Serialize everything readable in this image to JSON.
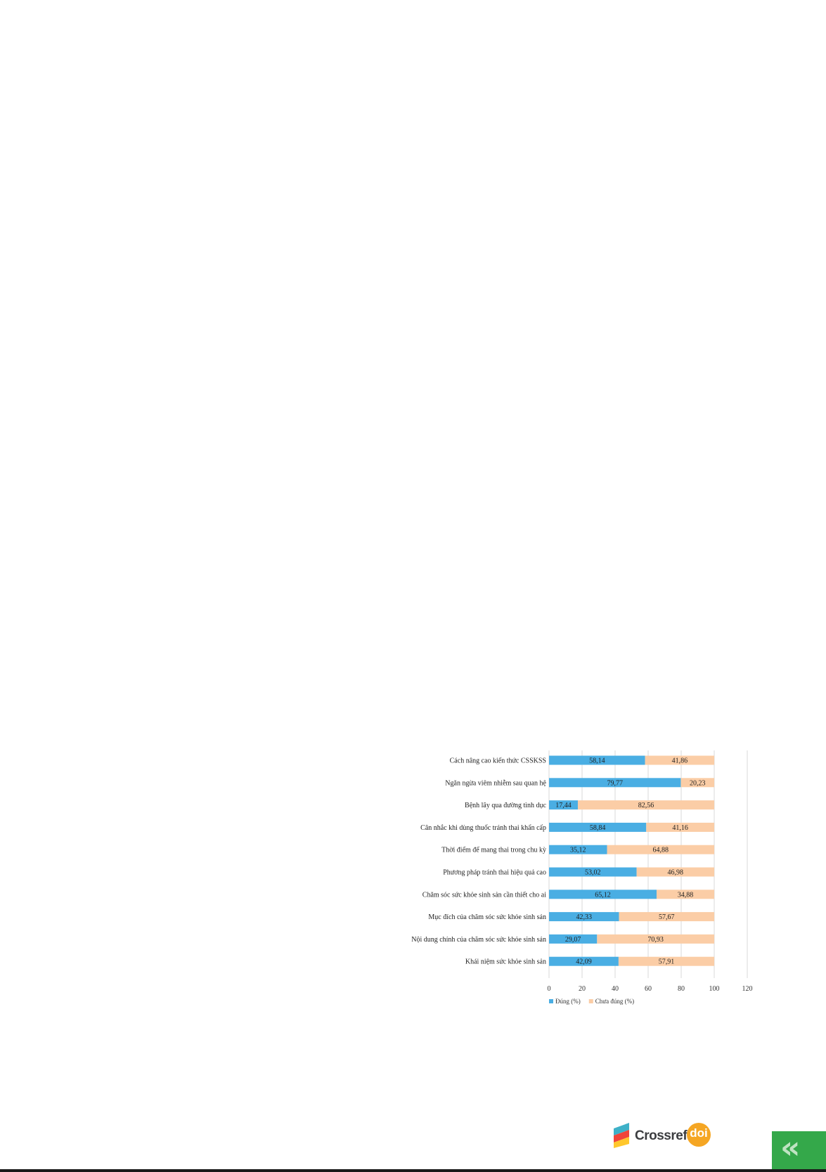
{
  "chart_data": {
    "type": "bar",
    "stacked": true,
    "orientation": "horizontal",
    "categories": [
      "Cách nâng cao kiến thức CSSKSS",
      "Ngăn ngừa viêm nhiễm sau quan hệ",
      "Bệnh lây qua đường tình dục",
      "Cân nhắc khi dùng thuốc tránh thai khẩn cấp",
      "Thời điểm để mang thai trong chu kỳ",
      "Phương pháp tránh thai hiệu quả cao",
      "Chăm sóc sức khỏe sinh sản cần thiết cho ai",
      "Mục đích của chăm sóc sức khỏe sinh sản",
      "Nội dung chính của chăm sóc sức khỏe sinh sản",
      "Khái niệm sức khỏe sinh sản"
    ],
    "series": [
      {
        "name": "Đúng (%)",
        "color": "#4aaee3",
        "values": [
          58.14,
          79.77,
          17.44,
          58.84,
          35.12,
          53.02,
          65.12,
          42.33,
          29.07,
          42.09
        ],
        "labels": [
          "58,14",
          "79,77",
          "17,44",
          "58,84",
          "35,12",
          "53,02",
          "65,12",
          "42,33",
          "29,07",
          "42,09"
        ]
      },
      {
        "name": "Chưa đúng (%)",
        "color": "#fbcda6",
        "values": [
          41.86,
          20.23,
          82.56,
          41.16,
          64.88,
          46.98,
          34.88,
          57.67,
          70.93,
          57.91
        ],
        "labels": [
          "41,86",
          "20,23",
          "82,56",
          "41,16",
          "64,88",
          "46,98",
          "34,88",
          "57,67",
          "70,93",
          "57,91"
        ]
      }
    ],
    "xlim": [
      0,
      120
    ],
    "x_ticks": [
      "0",
      "20",
      "40",
      "60",
      "80",
      "100",
      "120"
    ],
    "grid": true,
    "legend": "bottom-left",
    "title": "",
    "xlabel": "",
    "ylabel": ""
  },
  "footer": {
    "crossref_word": "Crossref",
    "doi_word": "doi",
    "corner_icon": "double-chevron-left-icon"
  }
}
